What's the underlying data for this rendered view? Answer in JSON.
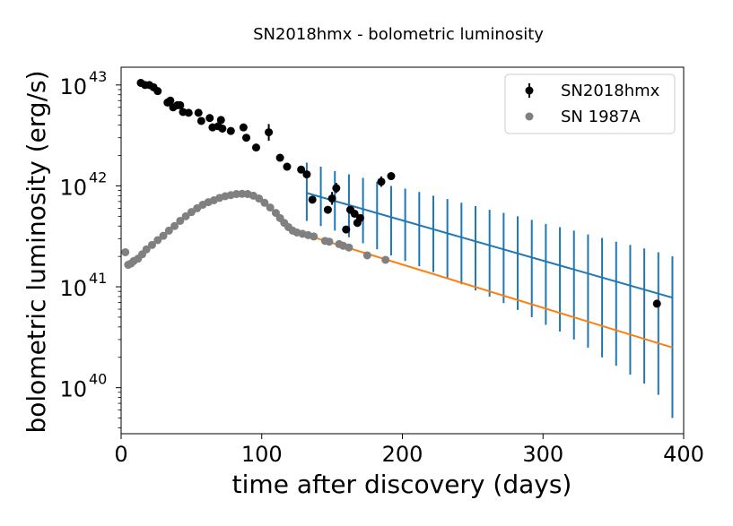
{
  "chart_data": {
    "type": "scatter",
    "title": "SN2018hmx - bolometric luminosity",
    "xlabel": "time after discovery (days)",
    "ylabel": "bolometric luminosity (erg/s)",
    "xlim": [
      0,
      400
    ],
    "ylim": [
      3.5e+39,
      1.5e+43
    ],
    "yscale": "log",
    "grid": false,
    "legend_position": "top-right",
    "x_ticks": [
      {
        "value": 0,
        "label": "0"
      },
      {
        "value": 100,
        "label": "100"
      },
      {
        "value": 200,
        "label": "200"
      },
      {
        "value": 300,
        "label": "300"
      },
      {
        "value": 400,
        "label": "400"
      }
    ],
    "y_ticks": [
      {
        "value": 1e+40,
        "base": "10",
        "exp": "40"
      },
      {
        "value": 1e+41,
        "base": "10",
        "exp": "41"
      },
      {
        "value": 1e+42,
        "base": "10",
        "exp": "42"
      },
      {
        "value": 1e+43,
        "base": "10",
        "exp": "43"
      }
    ],
    "legend": [
      {
        "label": "SN2018hmx",
        "color": "#000000",
        "marker": "errorbar-circle"
      },
      {
        "label": "SN 1987A",
        "color": "#808080",
        "marker": "circle"
      }
    ],
    "series": [
      {
        "name": "SN2018hmx",
        "color": "#000000",
        "points": [
          {
            "x": 14,
            "y": 1.05e+43
          },
          {
            "x": 17,
            "y": 1e+43
          },
          {
            "x": 20,
            "y": 1e+43
          },
          {
            "x": 23,
            "y": 9.5e+42
          },
          {
            "x": 26,
            "y": 8.7e+42
          },
          {
            "x": 33,
            "y": 6.7e+42
          },
          {
            "x": 35,
            "y": 7e+42
          },
          {
            "x": 37,
            "y": 6e+42
          },
          {
            "x": 40,
            "y": 6.3e+42
          },
          {
            "x": 42,
            "y": 6.3e+42
          },
          {
            "x": 44,
            "y": 5.4e+42
          },
          {
            "x": 48,
            "y": 5.3e+42
          },
          {
            "x": 55,
            "y": 5.3e+42
          },
          {
            "x": 57,
            "y": 4.4e+42
          },
          {
            "x": 63,
            "y": 4.7e+42
          },
          {
            "x": 65,
            "y": 3.8e+42
          },
          {
            "x": 69,
            "y": 3.9e+42
          },
          {
            "x": 71,
            "y": 4.5e+42
          },
          {
            "x": 72,
            "y": 3.7e+42
          },
          {
            "x": 78,
            "y": 3.5e+42
          },
          {
            "x": 87,
            "y": 3.8e+42
          },
          {
            "x": 89,
            "y": 3e+42
          },
          {
            "x": 96,
            "y": 2.4e+42
          },
          {
            "x": 105,
            "y": 3.4e+42,
            "err_lo": 2.8e+42,
            "err_hi": 4.1e+42
          },
          {
            "x": 113,
            "y": 1.9e+42
          },
          {
            "x": 118,
            "y": 1.55e+42
          },
          {
            "x": 128,
            "y": 1.45e+42
          },
          {
            "x": 132,
            "y": 1.3e+42
          },
          {
            "x": 136,
            "y": 7.3e+41
          },
          {
            "x": 147,
            "y": 5.8e+41
          },
          {
            "x": 150,
            "y": 7.5e+41,
            "err_lo": 6.5e+41,
            "err_hi": 8.7e+41
          },
          {
            "x": 153,
            "y": 9.5e+41,
            "err_lo": 8.5e+41,
            "err_hi": 1.07e+42
          },
          {
            "x": 160,
            "y": 3.7e+41
          },
          {
            "x": 163,
            "y": 5.8e+41
          },
          {
            "x": 166,
            "y": 5.3e+41
          },
          {
            "x": 168,
            "y": 4.3e+41
          },
          {
            "x": 170,
            "y": 4.8e+41
          },
          {
            "x": 185,
            "y": 1.1e+42,
            "err_lo": 9.8e+41,
            "err_hi": 1.24e+42
          },
          {
            "x": 192,
            "y": 1.25e+42
          },
          {
            "x": 381,
            "y": 6.8e+40
          }
        ]
      },
      {
        "name": "SN 1987A",
        "color": "#808080",
        "points": [
          {
            "x": 3,
            "y": 2.2e+41
          },
          {
            "x": 5,
            "y": 1.65e+41
          },
          {
            "x": 7,
            "y": 1.7e+41
          },
          {
            "x": 9,
            "y": 1.8e+41
          },
          {
            "x": 12,
            "y": 1.9e+41
          },
          {
            "x": 15,
            "y": 2.1e+41
          },
          {
            "x": 18,
            "y": 2.35e+41
          },
          {
            "x": 22,
            "y": 2.6e+41
          },
          {
            "x": 26,
            "y": 2.9e+41
          },
          {
            "x": 30,
            "y": 3.2e+41
          },
          {
            "x": 34,
            "y": 3.6e+41
          },
          {
            "x": 38,
            "y": 4e+41
          },
          {
            "x": 42,
            "y": 4.5e+41
          },
          {
            "x": 46,
            "y": 5e+41
          },
          {
            "x": 50,
            "y": 5.5e+41
          },
          {
            "x": 54,
            "y": 6e+41
          },
          {
            "x": 58,
            "y": 6.5e+41
          },
          {
            "x": 62,
            "y": 6.9e+41
          },
          {
            "x": 66,
            "y": 7.2e+41
          },
          {
            "x": 70,
            "y": 7.6e+41
          },
          {
            "x": 74,
            "y": 7.9e+41
          },
          {
            "x": 78,
            "y": 8.1e+41
          },
          {
            "x": 82,
            "y": 8.3e+41
          },
          {
            "x": 86,
            "y": 8.35e+41
          },
          {
            "x": 90,
            "y": 8.3e+41
          },
          {
            "x": 94,
            "y": 8e+41
          },
          {
            "x": 98,
            "y": 7.5e+41
          },
          {
            "x": 102,
            "y": 6.8e+41
          },
          {
            "x": 106,
            "y": 6.1e+41
          },
          {
            "x": 110,
            "y": 5.4e+41
          },
          {
            "x": 113,
            "y": 4.8e+41
          },
          {
            "x": 116,
            "y": 4.3e+41
          },
          {
            "x": 119,
            "y": 3.9e+41
          },
          {
            "x": 122,
            "y": 3.6e+41
          },
          {
            "x": 125,
            "y": 3.45e+41
          },
          {
            "x": 129,
            "y": 3.35e+41
          },
          {
            "x": 133,
            "y": 3.25e+41
          },
          {
            "x": 137,
            "y": 3.15e+41
          },
          {
            "x": 145,
            "y": 2.85e+41
          },
          {
            "x": 148,
            "y": 2.8e+41
          },
          {
            "x": 155,
            "y": 2.65e+41
          },
          {
            "x": 158,
            "y": 2.55e+41
          },
          {
            "x": 162,
            "y": 2.45e+41
          },
          {
            "x": 175,
            "y": 2.05e+41
          },
          {
            "x": 188,
            "y": 1.85e+41
          }
        ]
      }
    ],
    "fit_lines": [
      {
        "color": "#1f77b4",
        "x": [
          132,
          392
        ],
        "y": [
          8.5e+41,
          7.8e+40
        ],
        "error_bars": {
          "x": [
            132,
            142,
            152,
            162,
            172,
            182,
            192,
            202,
            212,
            222,
            232,
            242,
            252,
            262,
            272,
            282,
            292,
            302,
            312,
            322,
            332,
            342,
            352,
            362,
            372,
            382,
            392
          ],
          "lo": [
            4.5e+41,
            4e+41,
            3.6e+41,
            3.1e+41,
            2.7e+41,
            2.35e+41,
            2.05e+41,
            1.8e+41,
            1.6e+41,
            1.4e+41,
            1.2e+41,
            1.06e+41,
            9.2e+40,
            8e+40,
            6.9e+40,
            5.9e+40,
            5e+40,
            4.2e+40,
            3.6e+40,
            3e+40,
            2.5e+40,
            2e+40,
            1.65e+40,
            1.35e+40,
            1.1e+40,
            8.5e+39,
            5e+39
          ],
          "hi": [
            1.7e+42,
            1.55e+42,
            1.4e+42,
            1.3e+42,
            1.2e+42,
            1.1e+42,
            1e+42,
            9.4e+41,
            8.7e+41,
            8e+41,
            7.4e+41,
            6.8e+41,
            6.3e+41,
            5.8e+41,
            5.4e+41,
            5e+41,
            4.6e+41,
            4.2e+41,
            3.9e+41,
            3.6e+41,
            3.3e+41,
            3.05e+41,
            2.8e+41,
            2.6e+41,
            2.4e+41,
            2.2e+41,
            2e+41
          ]
        }
      },
      {
        "color": "#ff7f0e",
        "x": [
          132,
          392
        ],
        "y": [
          3.25e+41,
          2.5e+40
        ]
      }
    ]
  }
}
